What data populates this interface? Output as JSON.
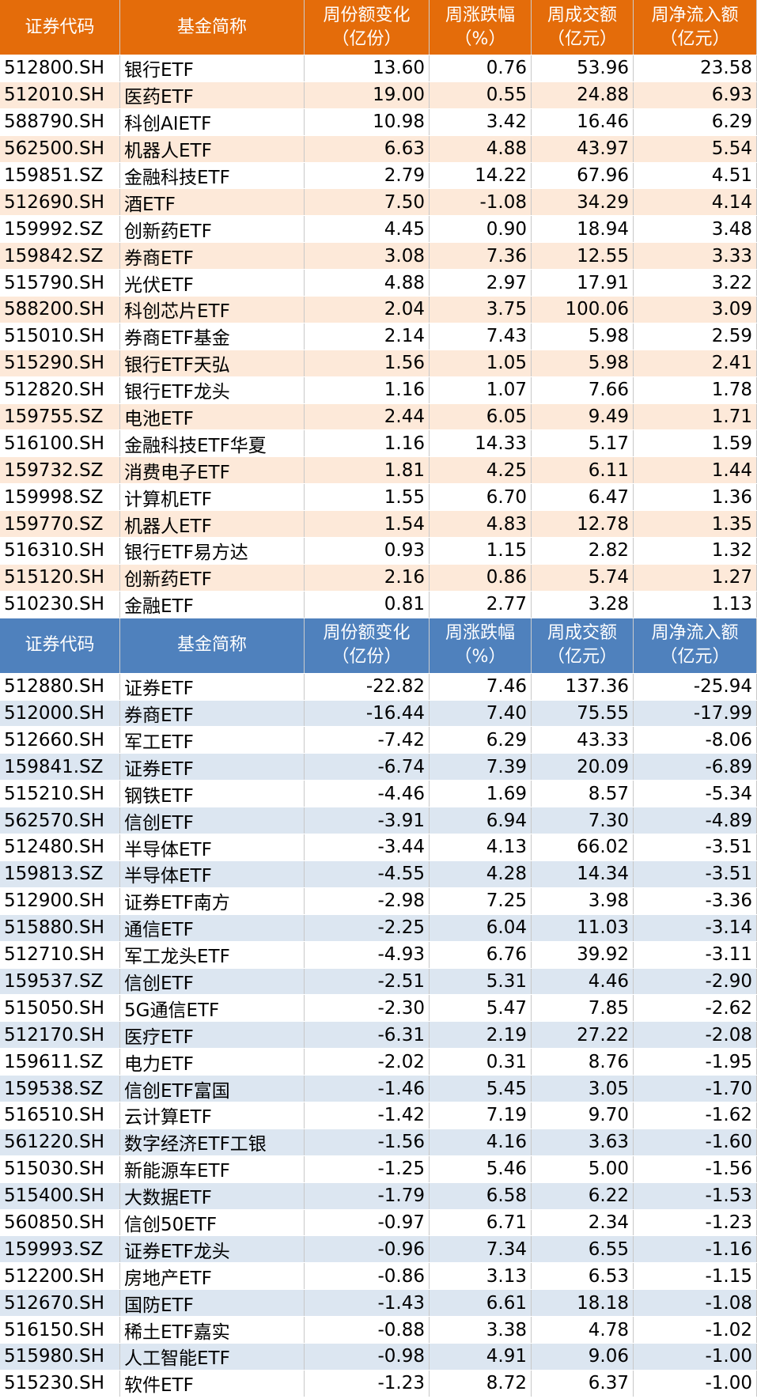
{
  "tables": [
    {
      "header": [
        [
          "证券代码"
        ],
        [
          "基金简称"
        ],
        [
          "周份额变化",
          "（亿份）"
        ],
        [
          "周涨跌幅",
          "（%）"
        ],
        [
          "周成交额",
          "（亿元）"
        ],
        [
          "周净流入额",
          "（亿元）"
        ]
      ],
      "rows": [
        [
          "512800.SH",
          "银行ETF",
          "13.60",
          "0.76",
          "53.96",
          "23.58"
        ],
        [
          "512010.SH",
          "医药ETF",
          "19.00",
          "0.55",
          "24.88",
          "6.93"
        ],
        [
          "588790.SH",
          "科创AIETF",
          "10.98",
          "3.42",
          "16.46",
          "6.29"
        ],
        [
          "562500.SH",
          "机器人ETF",
          "6.63",
          "4.88",
          "43.97",
          "5.54"
        ],
        [
          "159851.SZ",
          "金融科技ETF",
          "2.79",
          "14.22",
          "67.96",
          "4.51"
        ],
        [
          "512690.SH",
          "酒ETF",
          "7.50",
          "-1.08",
          "34.29",
          "4.14"
        ],
        [
          "159992.SZ",
          "创新药ETF",
          "4.45",
          "0.90",
          "18.94",
          "3.48"
        ],
        [
          "159842.SZ",
          "券商ETF",
          "3.08",
          "7.36",
          "12.55",
          "3.33"
        ],
        [
          "515790.SH",
          "光伏ETF",
          "4.88",
          "2.97",
          "17.91",
          "3.22"
        ],
        [
          "588200.SH",
          "科创芯片ETF",
          "2.04",
          "3.75",
          "100.06",
          "3.09"
        ],
        [
          "515010.SH",
          "券商ETF基金",
          "2.14",
          "7.43",
          "5.98",
          "2.59"
        ],
        [
          "515290.SH",
          "银行ETF天弘",
          "1.56",
          "1.05",
          "5.98",
          "2.41"
        ],
        [
          "512820.SH",
          "银行ETF龙头",
          "1.16",
          "1.07",
          "7.66",
          "1.78"
        ],
        [
          "159755.SZ",
          "电池ETF",
          "2.44",
          "6.05",
          "9.49",
          "1.71"
        ],
        [
          "516100.SH",
          "金融科技ETF华夏",
          "1.16",
          "14.33",
          "5.17",
          "1.59"
        ],
        [
          "159732.SZ",
          "消费电子ETF",
          "1.81",
          "4.25",
          "6.11",
          "1.44"
        ],
        [
          "159998.SZ",
          "计算机ETF",
          "1.55",
          "6.70",
          "6.47",
          "1.36"
        ],
        [
          "159770.SZ",
          "机器人ETF",
          "1.54",
          "4.83",
          "12.78",
          "1.35"
        ],
        [
          "516310.SH",
          "银行ETF易方达",
          "0.93",
          "1.15",
          "2.82",
          "1.32"
        ],
        [
          "515120.SH",
          "创新药ETF",
          "2.16",
          "0.86",
          "5.74",
          "1.27"
        ],
        [
          "510230.SH",
          "金融ETF",
          "0.81",
          "2.77",
          "3.28",
          "1.13"
        ]
      ]
    },
    {
      "header": [
        [
          "证券代码"
        ],
        [
          "基金简称"
        ],
        [
          "周份额变化",
          "（亿份）"
        ],
        [
          "周涨跌幅",
          "（%）"
        ],
        [
          "周成交额",
          "（亿元）"
        ],
        [
          "周净流入额",
          "（亿元）"
        ]
      ],
      "rows": [
        [
          "512880.SH",
          "证券ETF",
          "-22.82",
          "7.46",
          "137.36",
          "-25.94"
        ],
        [
          "512000.SH",
          "券商ETF",
          "-16.44",
          "7.40",
          "75.55",
          "-17.99"
        ],
        [
          "512660.SH",
          "军工ETF",
          "-7.42",
          "6.29",
          "43.33",
          "-8.06"
        ],
        [
          "159841.SZ",
          "证券ETF",
          "-6.74",
          "7.39",
          "20.09",
          "-6.89"
        ],
        [
          "515210.SH",
          "钢铁ETF",
          "-4.46",
          "1.69",
          "8.57",
          "-5.34"
        ],
        [
          "562570.SH",
          "信创ETF",
          "-3.91",
          "6.94",
          "7.30",
          "-4.89"
        ],
        [
          "512480.SH",
          "半导体ETF",
          "-3.44",
          "4.13",
          "66.02",
          "-3.51"
        ],
        [
          "159813.SZ",
          "半导体ETF",
          "-4.55",
          "4.28",
          "14.34",
          "-3.51"
        ],
        [
          "512900.SH",
          "证券ETF南方",
          "-2.98",
          "7.25",
          "3.98",
          "-3.36"
        ],
        [
          "515880.SH",
          "通信ETF",
          "-2.25",
          "6.04",
          "11.03",
          "-3.14"
        ],
        [
          "512710.SH",
          "军工龙头ETF",
          "-4.93",
          "6.76",
          "39.92",
          "-3.11"
        ],
        [
          "159537.SZ",
          "信创ETF",
          "-2.51",
          "5.31",
          "4.46",
          "-2.90"
        ],
        [
          "515050.SH",
          "5G通信ETF",
          "-2.30",
          "5.47",
          "7.85",
          "-2.62"
        ],
        [
          "512170.SH",
          "医疗ETF",
          "-6.31",
          "2.19",
          "27.22",
          "-2.08"
        ],
        [
          "159611.SZ",
          "电力ETF",
          "-2.02",
          "0.31",
          "8.76",
          "-1.95"
        ],
        [
          "159538.SZ",
          "信创ETF富国",
          "-1.46",
          "5.45",
          "3.05",
          "-1.70"
        ],
        [
          "516510.SH",
          "云计算ETF",
          "-1.42",
          "7.19",
          "9.70",
          "-1.62"
        ],
        [
          "561220.SH",
          "数字经济ETF工银",
          "-1.56",
          "4.16",
          "3.63",
          "-1.60"
        ],
        [
          "515030.SH",
          "新能源车ETF",
          "-1.25",
          "5.46",
          "5.00",
          "-1.56"
        ],
        [
          "515400.SH",
          "大数据ETF",
          "-1.79",
          "6.58",
          "6.22",
          "-1.53"
        ],
        [
          "560850.SH",
          "信创50ETF",
          "-0.97",
          "6.71",
          "2.34",
          "-1.23"
        ],
        [
          "159993.SZ",
          "证券ETF龙头",
          "-0.96",
          "7.34",
          "6.55",
          "-1.16"
        ],
        [
          "512200.SH",
          "房地产ETF",
          "-0.86",
          "3.13",
          "6.53",
          "-1.15"
        ],
        [
          "512670.SH",
          "国防ETF",
          "-1.43",
          "6.61",
          "18.18",
          "-1.08"
        ],
        [
          "516150.SH",
          "稀土ETF嘉实",
          "-0.88",
          "3.38",
          "4.78",
          "-1.02"
        ],
        [
          "515980.SH",
          "人工智能ETF",
          "-0.98",
          "4.91",
          "9.06",
          "-1.00"
        ],
        [
          "515230.SH",
          "软件ETF",
          "-1.23",
          "8.72",
          "6.37",
          "-1.00"
        ]
      ]
    }
  ]
}
